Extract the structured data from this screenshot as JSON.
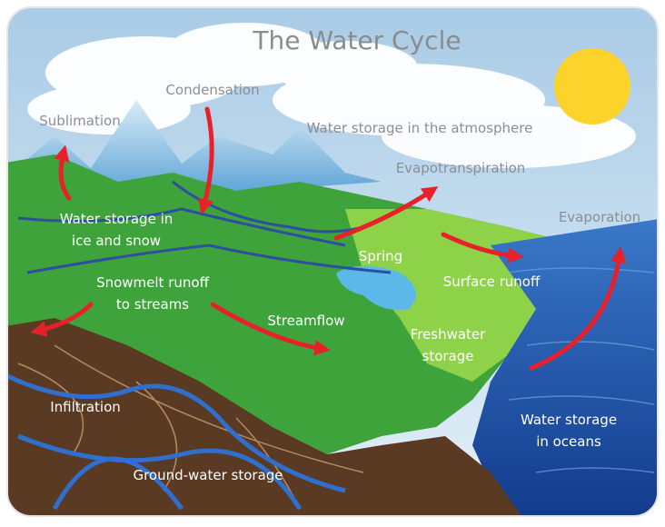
{
  "title": "The Water Cycle",
  "labels": {
    "condensation": [
      "Condensation"
    ],
    "sublimation": [
      "Sublimation"
    ],
    "atmosphere": [
      "Water storage in the atmosphere"
    ],
    "evapotranspiration": [
      "Evapotranspiration"
    ],
    "evaporation": [
      "Evaporation"
    ],
    "ice_snow": [
      "Water storage in",
      "ice and snow"
    ],
    "spring": [
      "Spring"
    ],
    "surface_runoff": [
      "Surface runoff"
    ],
    "snowmelt": [
      "Snowmelt runoff",
      "to streams"
    ],
    "streamflow": [
      "Streamflow"
    ],
    "freshwater": [
      "Freshwater",
      "storage"
    ],
    "infiltration": [
      "Infiltration"
    ],
    "oceans": [
      "Water storage",
      "in oceans"
    ],
    "groundwater": [
      "Ground-water storage"
    ]
  }
}
